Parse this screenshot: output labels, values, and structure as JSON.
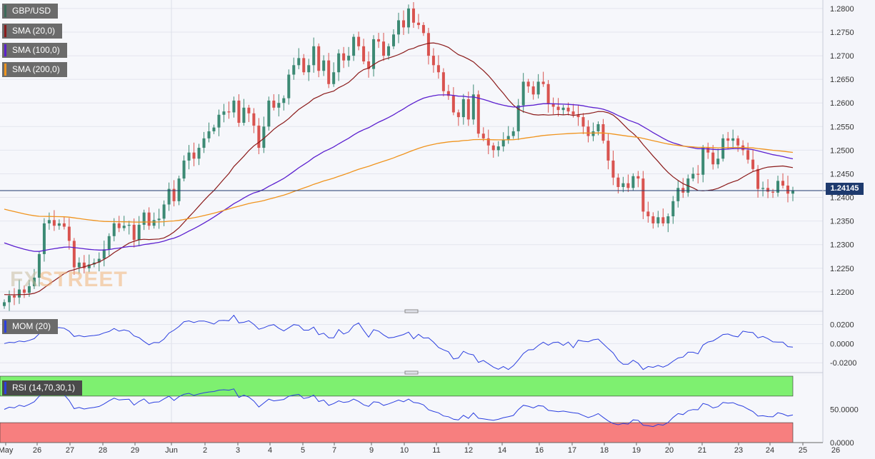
{
  "instrument": "GBP/USD",
  "indicators": {
    "sma20": {
      "label": "SMA (20,0)",
      "color": "#8b1a1a"
    },
    "sma100": {
      "label": "SMA (100,0)",
      "color": "#5b1fcf"
    },
    "sma200": {
      "label": "SMA (200,0)",
      "color": "#f0941e"
    },
    "mom": {
      "label": "MOM (20)",
      "color": "#2b3fe0"
    },
    "rsi": {
      "label": "RSI (14,70,30,1)",
      "color": "#2b3fe0"
    }
  },
  "watermark": {
    "part1": "FX",
    "part2": "STREET"
  },
  "current_price_label": "1.24145",
  "chart_data": [
    {
      "type": "candlestick",
      "title": "GBP/USD",
      "ylim": [
        1.2165,
        1.2818
      ],
      "y_ticks": [
        "1.2800",
        "1.2750",
        "1.2700",
        "1.2650",
        "1.2600",
        "1.2550",
        "1.2500",
        "1.2450",
        "1.2400",
        "1.2350",
        "1.2300",
        "1.2250",
        "1.2200"
      ],
      "x_ticks": [
        "May",
        "26",
        "27",
        "28",
        "29",
        "Jun",
        "2",
        "3",
        "4",
        "5",
        "7",
        "9",
        "10",
        "11",
        "12",
        "14",
        "16",
        "17",
        "18",
        "19",
        "20",
        "21",
        "23",
        "24",
        "25",
        "26"
      ],
      "current_price": 1.24145,
      "ohlc_closes": [
        1.2178,
        1.2192,
        1.2188,
        1.2205,
        1.2198,
        1.2212,
        1.223,
        1.228,
        1.2345,
        1.2352,
        1.234,
        1.2345,
        1.2338,
        1.2308,
        1.2252,
        1.2262,
        1.225,
        1.2258,
        1.2262,
        1.227,
        1.229,
        1.2318,
        1.2345,
        1.2335,
        1.234,
        1.2342,
        1.231,
        1.2342,
        1.2368,
        1.234,
        1.2352,
        1.2355,
        1.2385,
        1.2418,
        1.2392,
        1.244,
        1.2478,
        1.2495,
        1.2482,
        1.2505,
        1.2525,
        1.254,
        1.2548,
        1.2575,
        1.2582,
        1.258,
        1.2605,
        1.2558,
        1.259,
        1.2578,
        1.2552,
        1.2505,
        1.255,
        1.2605,
        1.259,
        1.26,
        1.261,
        1.266,
        1.268,
        1.2695,
        1.2665,
        1.268,
        1.272,
        1.2668,
        1.269,
        1.264,
        1.2665,
        1.2705,
        1.269,
        1.27,
        1.274,
        1.272,
        1.2688,
        1.2672,
        1.2735,
        1.273,
        1.27,
        1.272,
        1.2745,
        1.2775,
        1.276,
        1.28,
        1.277,
        1.2765,
        1.2748,
        1.27,
        1.268,
        1.2665,
        1.2625,
        1.2615,
        1.258,
        1.257,
        1.2608,
        1.2565,
        1.2618,
        1.2535,
        1.2525,
        1.251,
        1.25,
        1.2508,
        1.2522,
        1.253,
        1.254,
        1.2595,
        1.2645,
        1.2635,
        1.2618,
        1.2645,
        1.264,
        1.2598,
        1.2592,
        1.2585,
        1.259,
        1.2582,
        1.2575,
        1.257,
        1.255,
        1.253,
        1.254,
        1.2555,
        1.252,
        1.2478,
        1.2442,
        1.2422,
        1.243,
        1.242,
        1.2445,
        1.244,
        1.237,
        1.236,
        1.2345,
        1.2358,
        1.2345,
        1.236,
        1.2392,
        1.242,
        1.241,
        1.244,
        1.245,
        1.2448,
        1.2505,
        1.2495,
        1.247,
        1.2482,
        1.2525,
        1.252,
        1.2525,
        1.251,
        1.25,
        1.248,
        1.246,
        1.2418,
        1.242,
        1.2412,
        1.241,
        1.2435,
        1.2425,
        1.2408,
        1.2414
      ]
    },
    {
      "type": "line",
      "title": "MOM (20)",
      "ylim": [
        -0.028,
        0.03
      ],
      "y_ticks": [
        "0.0200",
        "0.0000",
        "-0.0200"
      ]
    },
    {
      "type": "line",
      "title": "RSI (14,70,30,1)",
      "ylim": [
        0,
        100
      ],
      "y_ticks": [
        "50.0000",
        "0.0000"
      ],
      "overbought": 70,
      "oversold": 30
    }
  ]
}
